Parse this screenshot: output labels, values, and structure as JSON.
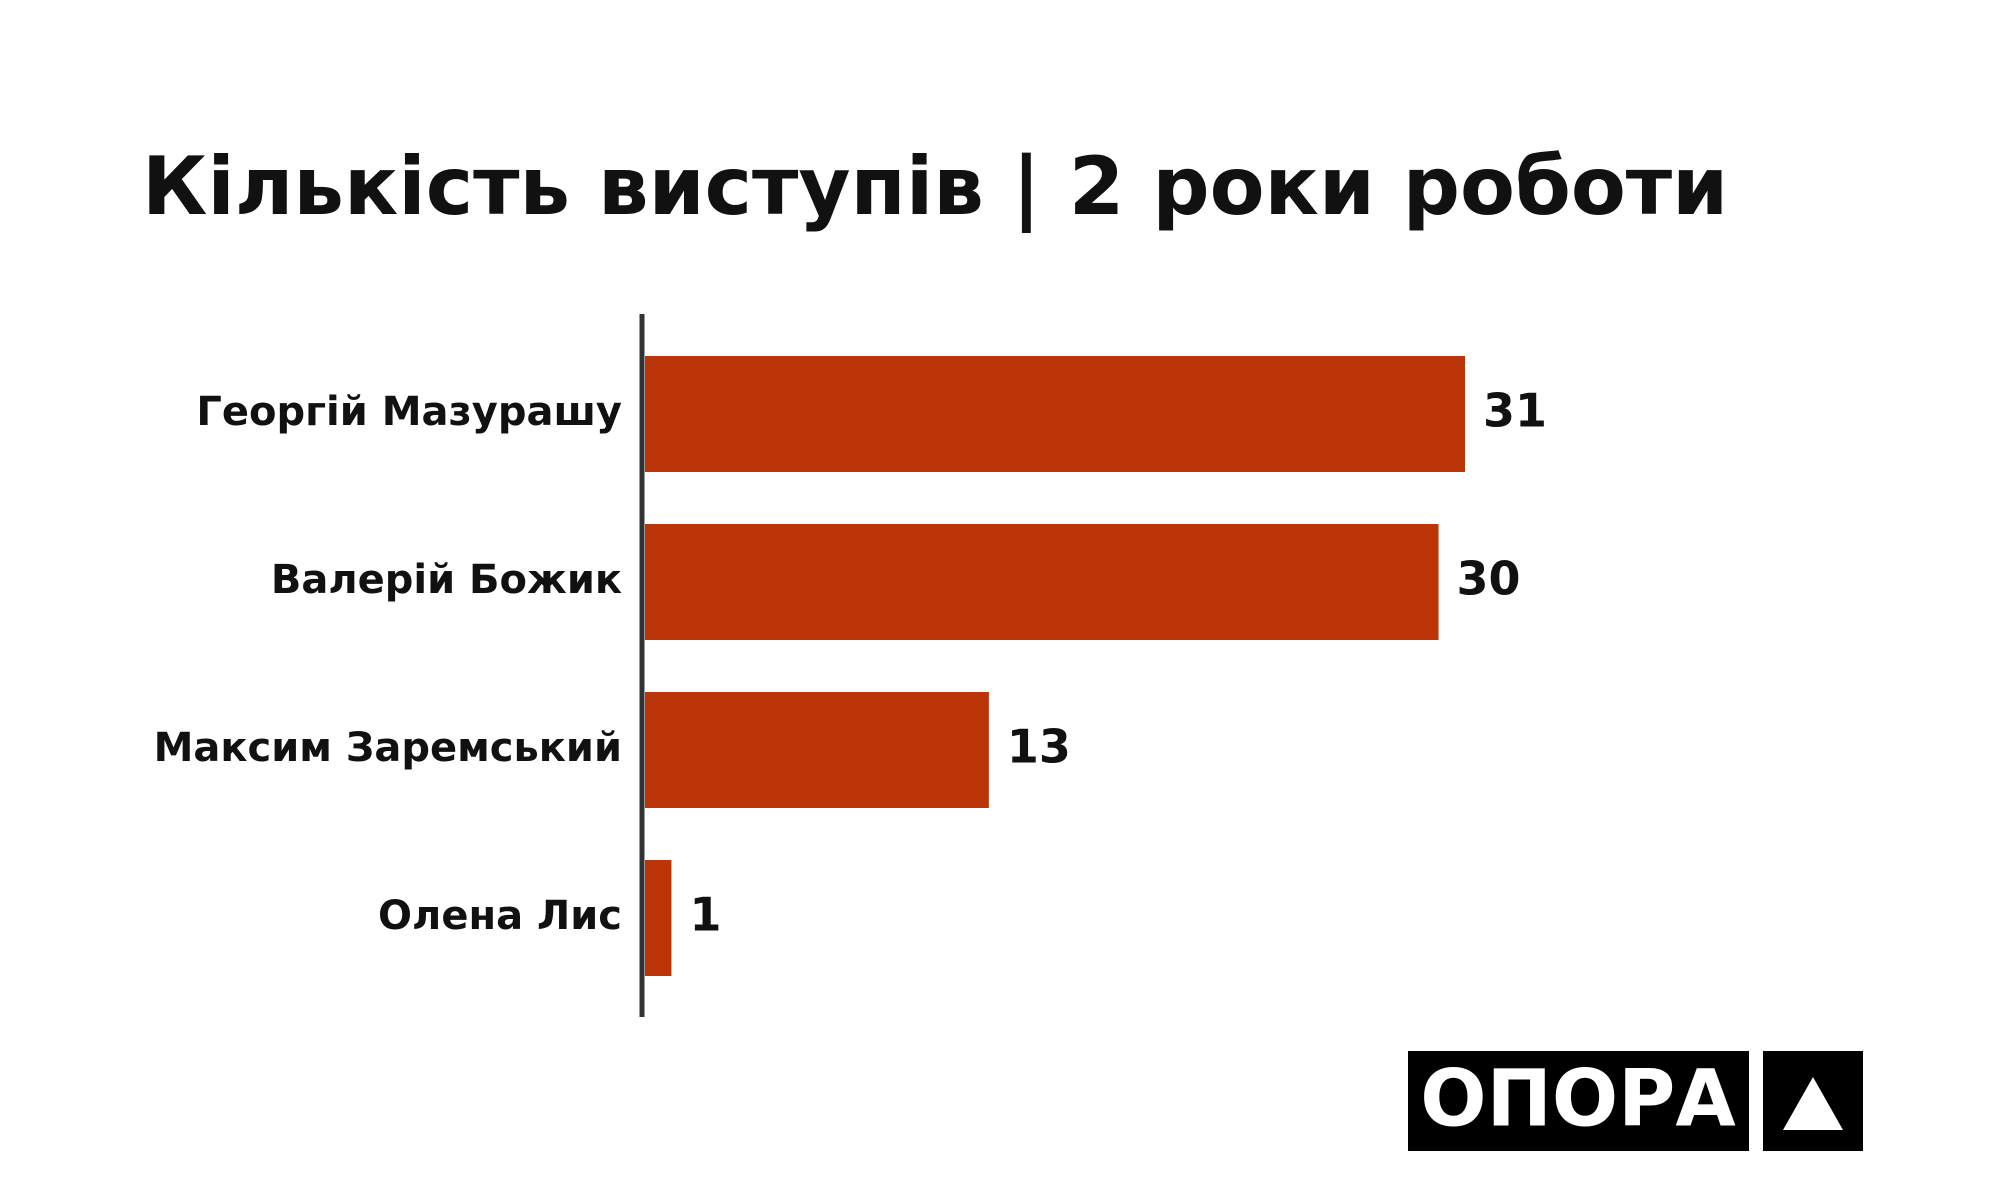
{
  "chart_data": {
    "type": "bar",
    "orientation": "horizontal",
    "title": "Кількість виступів | 2 роки роботи",
    "categories": [
      "Георгій Мазурашу",
      "Валерій Божик",
      "Максим Заремський",
      "Олена Лис"
    ],
    "values": [
      31,
      30,
      13,
      1
    ],
    "color": "#bb3508"
  },
  "logo": {
    "text": "ОПОРА"
  }
}
